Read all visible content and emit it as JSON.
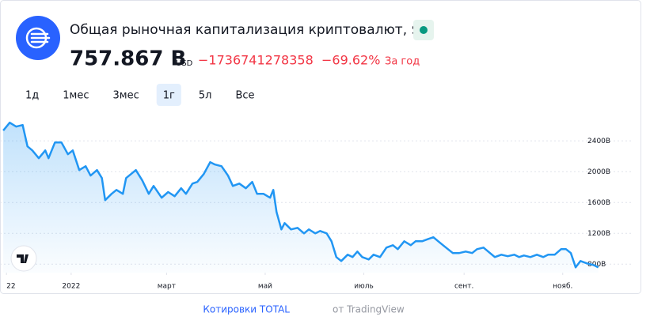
{
  "header": {
    "title": "Общая рыночная капитализация криптовалют, $",
    "price": "757.867 B",
    "currency": "USD",
    "change": "−1736741278358",
    "change_pct": "−69.62%",
    "period": "За год"
  },
  "ranges": [
    {
      "label": "1д"
    },
    {
      "label": "1мес"
    },
    {
      "label": "3мес"
    },
    {
      "label": "1г",
      "active": true
    },
    {
      "label": "5л"
    },
    {
      "label": "Все"
    }
  ],
  "chart_data": {
    "type": "area",
    "color": "#2196f3",
    "grid": true,
    "x": [
      -42,
      -38,
      -34,
      -30,
      -27,
      -24,
      -20,
      -16,
      -14,
      -10,
      -6,
      -2,
      1,
      5,
      9,
      12,
      16,
      19,
      21,
      25,
      28,
      32,
      34,
      37,
      40,
      44,
      48,
      51,
      56,
      60,
      64,
      68,
      71,
      75,
      78,
      82,
      86,
      89,
      93,
      97,
      100,
      104,
      108,
      112,
      115,
      119,
      123,
      125,
      127,
      130,
      132,
      136,
      140,
      144,
      147,
      151,
      154,
      158,
      161,
      164,
      167,
      171,
      174,
      177,
      180,
      184,
      187,
      191,
      195,
      199,
      202,
      206,
      210,
      213,
      217,
      221,
      224,
      227,
      230,
      233,
      236,
      240,
      244,
      248,
      251,
      255,
      259,
      262,
      266,
      270,
      274,
      277,
      280,
      284,
      288,
      292,
      295,
      299,
      303,
      306,
      309,
      312,
      315,
      319,
      323,
      326
    ],
    "values": [
      2534,
      2637,
      2585,
      2606,
      2329,
      2277,
      2175,
      2277,
      2175,
      2380,
      2380,
      2226,
      2277,
      2021,
      2072,
      1949,
      2021,
      1918,
      1631,
      1713,
      1764,
      1713,
      1918,
      1969,
      2021,
      1887,
      1713,
      1815,
      1662,
      1736,
      1682,
      1785,
      1713,
      1846,
      1867,
      1969,
      2124,
      2093,
      2072,
      1949,
      1815,
      1846,
      1785,
      1867,
      1713,
      1713,
      1662,
      1764,
      1477,
      1251,
      1333,
      1251,
      1272,
      1200,
      1251,
      1200,
      1231,
      1200,
      1097,
      892,
      841,
      923,
      892,
      964,
      892,
      861,
      923,
      892,
      1015,
      1046,
      995,
      1097,
      1046,
      1097,
      1097,
      1128,
      1149,
      1097,
      1046,
      995,
      944,
      944,
      964,
      944,
      995,
      1015,
      944,
      892,
      923,
      903,
      923,
      892,
      913,
      892,
      923,
      892,
      923,
      923,
      995,
      995,
      944,
      759,
      841,
      810,
      790,
      758
    ],
    "xlim": [
      -44,
      333
    ],
    "ylim": [
      690,
      2690
    ],
    "xticks": [
      {
        "value": -40,
        "label": "22"
      },
      {
        "value": 0,
        "label": "2022"
      },
      {
        "value": 59,
        "label": "март"
      },
      {
        "value": 120,
        "label": "май"
      },
      {
        "value": 181,
        "label": "июль"
      },
      {
        "value": 243,
        "label": "сент."
      },
      {
        "value": 304,
        "label": "нояб."
      }
    ],
    "yticks": [
      {
        "value": 800,
        "label": "800B"
      },
      {
        "value": 1200,
        "label": "1200B"
      },
      {
        "value": 1600,
        "label": "1600B"
      },
      {
        "value": 2000,
        "label": "2000B"
      },
      {
        "value": 2400,
        "label": "2400B"
      }
    ]
  },
  "footer": {
    "link": "Котировки TOTAL",
    "source": "от TradingView"
  }
}
